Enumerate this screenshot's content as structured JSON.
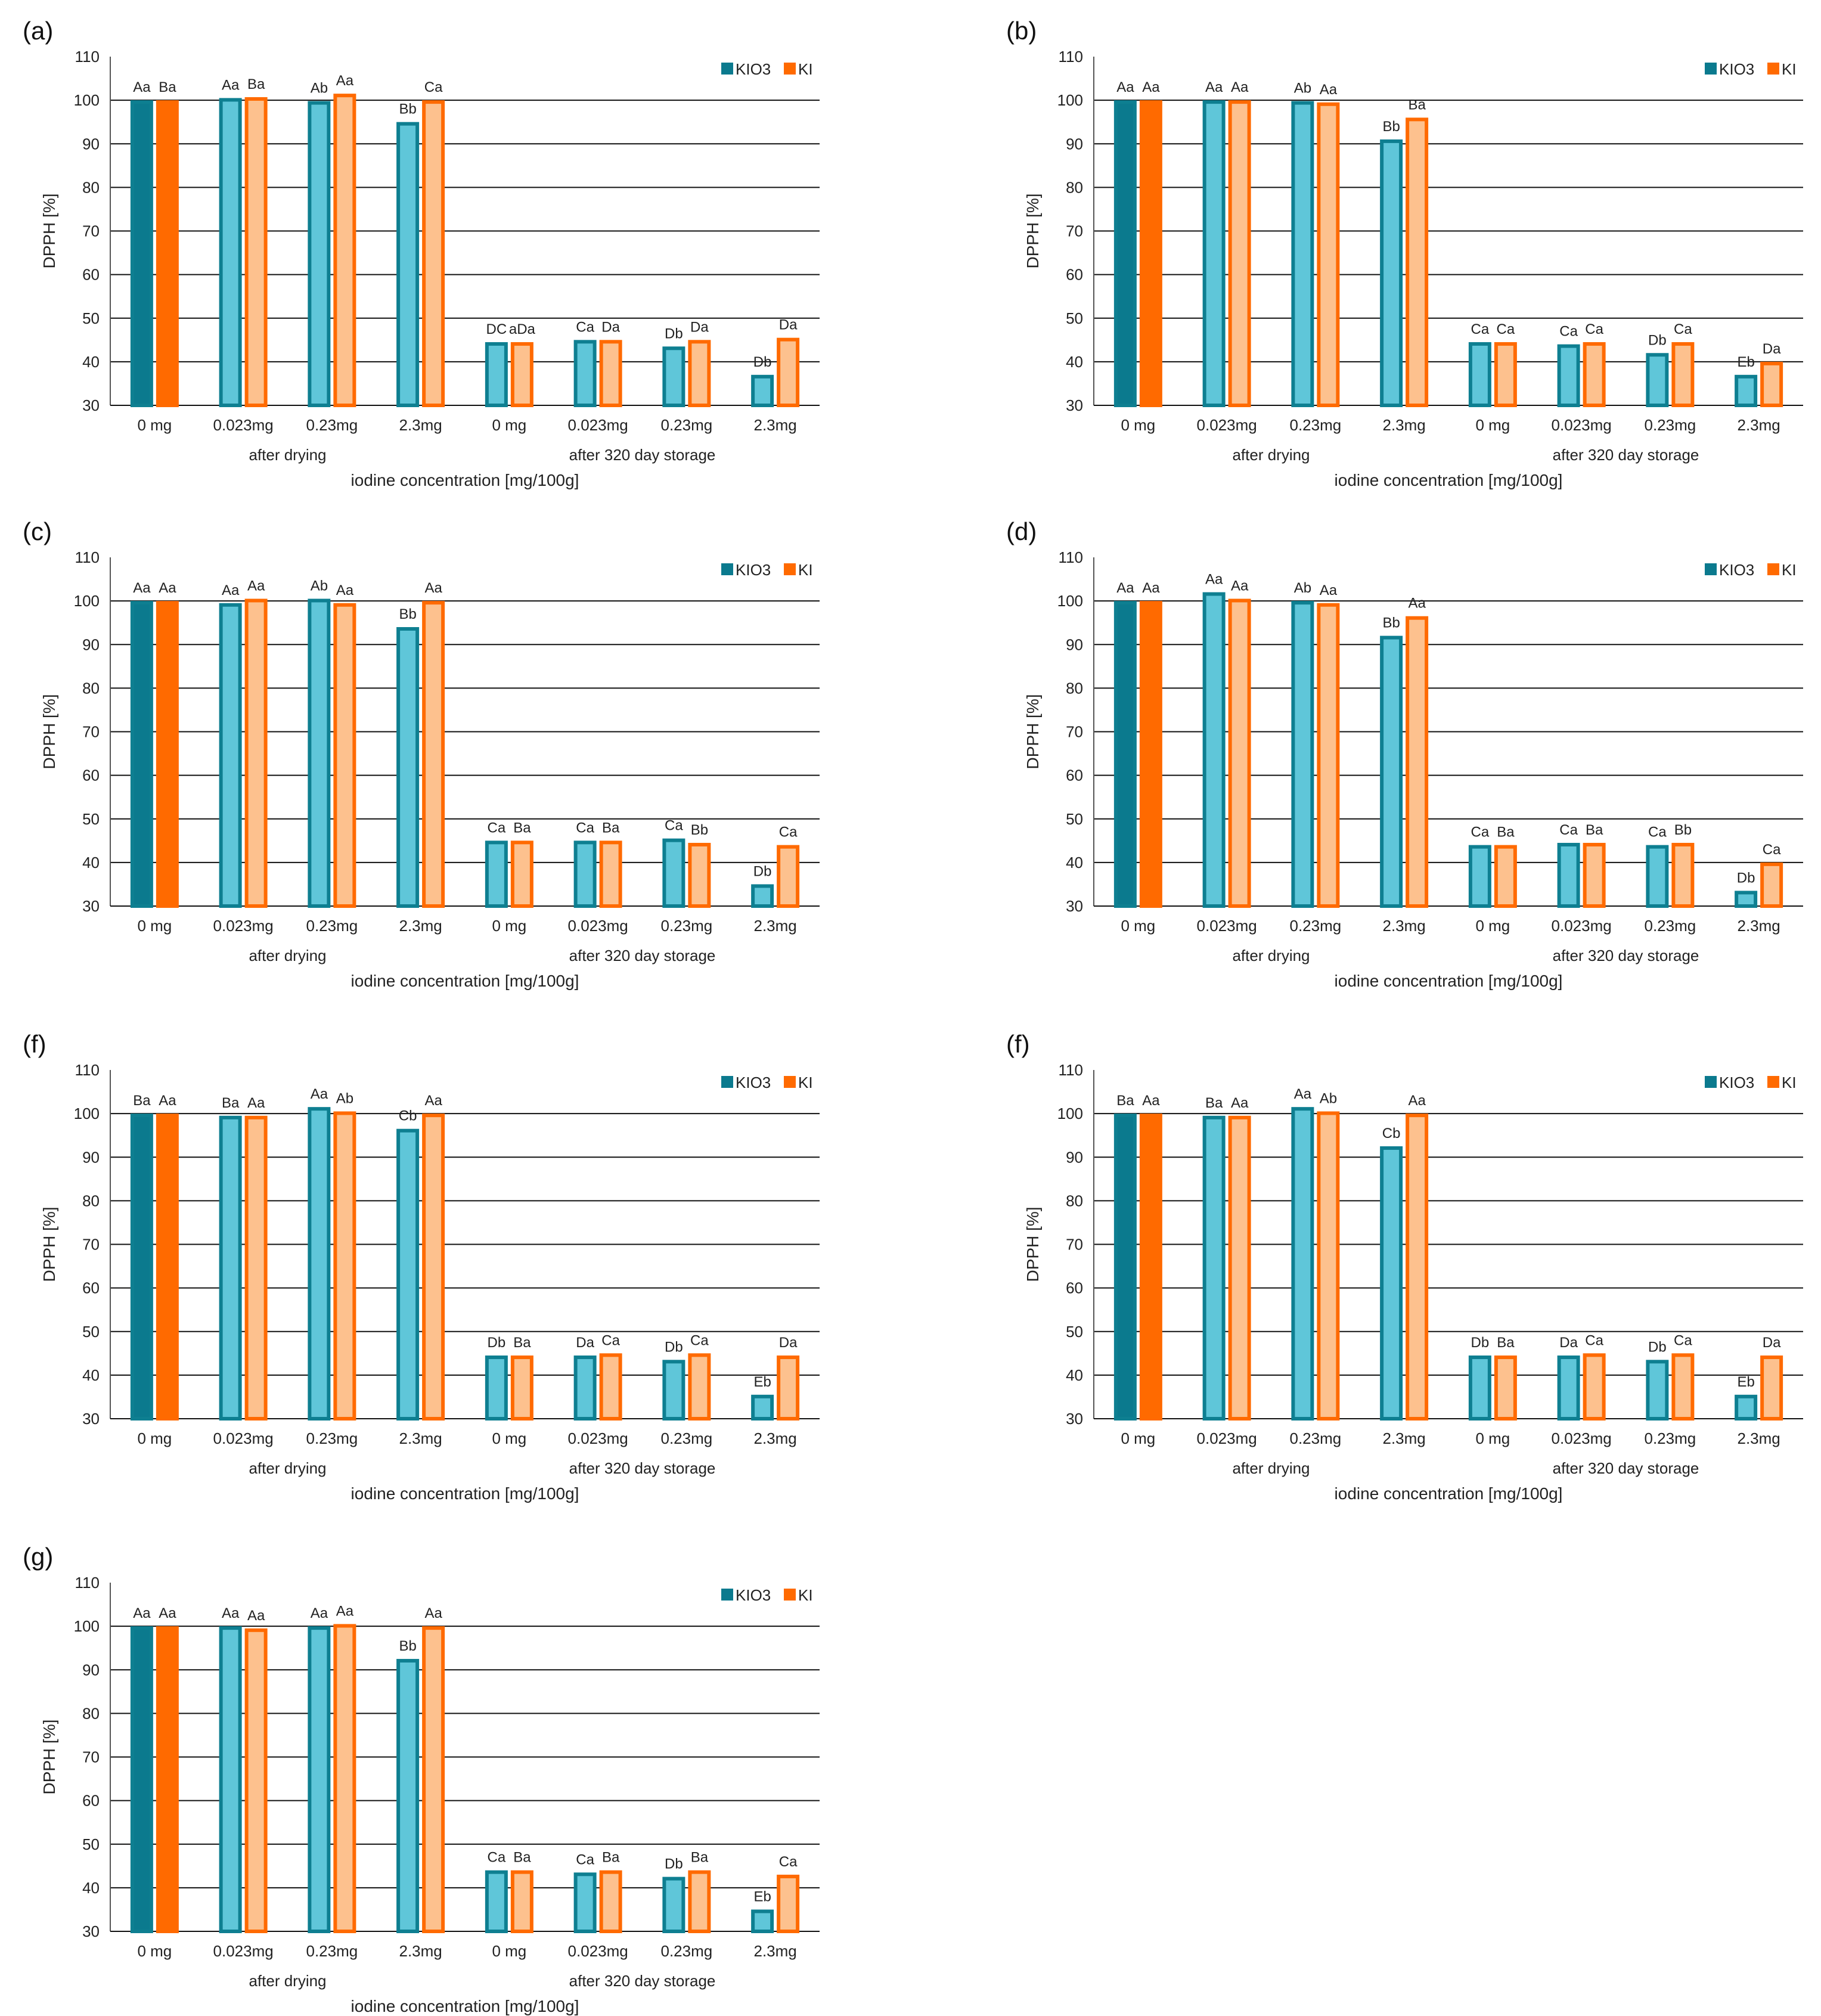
{
  "colors": {
    "kio3_ref": "#0B7A8E",
    "kio3_fill": "#5FC6D9",
    "kio3_stroke": "#0E7F91",
    "ki_ref": "#FF6A00",
    "ki_fill": "#FDC18E",
    "ki_stroke": "#FF6A00",
    "grid": "#111111"
  },
  "chart_data": [
    {
      "type": "bar",
      "panel_label": "(a)",
      "ylabel": "DPPH  [%]",
      "xlabel": "iodine concentration  [mg/100g]",
      "ylim": [
        30,
        110
      ],
      "yticks": [
        30,
        40,
        50,
        60,
        70,
        80,
        90,
        100,
        110
      ],
      "grid": true,
      "categories": [
        "0 mg",
        "0.023mg",
        "0.23mg",
        "2.3mg",
        "0 mg",
        "0.023mg",
        "0.23mg",
        "2.3mg"
      ],
      "groups": [
        {
          "name": "after drying",
          "from": 0,
          "to": 3
        },
        {
          "name": "after 320 day storage",
          "from": 4,
          "to": 7
        }
      ],
      "legend": [
        "KIO3",
        "KI"
      ],
      "series": [
        {
          "name": "KIO3",
          "values": [
            100,
            100.5,
            99.8,
            95,
            44.5,
            45,
            43.5,
            37
          ],
          "labels": [
            "Aa",
            "Aa",
            "Ab",
            "Bb",
            "DC",
            "Ca",
            "Db",
            "Db"
          ]
        },
        {
          "name": "KI",
          "values": [
            100,
            100.7,
            101.5,
            100,
            44.5,
            45,
            45,
            45.5
          ],
          "labels": [
            "Ba",
            "Ba",
            "Aa",
            "Ca",
            "aDa",
            "Da",
            "Da",
            "Da"
          ]
        }
      ]
    },
    {
      "type": "bar",
      "panel_label": "(b)",
      "ylabel": "DPPH  [%]",
      "xlabel": "iodine concentration  [mg/100g]",
      "ylim": [
        30,
        110
      ],
      "yticks": [
        30,
        40,
        50,
        60,
        70,
        80,
        90,
        100,
        110
      ],
      "grid": true,
      "categories": [
        "0 mg",
        "0.023mg",
        "0.23mg",
        "2.3mg",
        "0 mg",
        "0.023mg",
        "0.23mg",
        "2.3mg"
      ],
      "groups": [
        {
          "name": "after drying",
          "from": 0,
          "to": 3
        },
        {
          "name": "after 320 day storage",
          "from": 4,
          "to": 7
        }
      ],
      "legend": [
        "KIO3",
        "KI"
      ],
      "series": [
        {
          "name": "KIO3",
          "values": [
            100,
            100,
            99.8,
            91,
            44.5,
            44,
            42,
            37
          ],
          "labels": [
            "Aa",
            "Aa",
            "Ab",
            "Bb",
            "Ca",
            "Ca",
            "Db",
            "Eb"
          ]
        },
        {
          "name": "KI",
          "values": [
            100,
            100,
            99.5,
            96,
            44.5,
            44.5,
            44.5,
            40
          ],
          "labels": [
            "Aa",
            "Aa",
            "Aa",
            "Ba",
            "Ca",
            "Ca",
            "Ca",
            "Da"
          ]
        }
      ]
    },
    {
      "type": "bar",
      "panel_label": "(c)",
      "ylabel": "DPPH  [%]",
      "xlabel": "iodine concentration  [mg/100g]",
      "ylim": [
        30,
        110
      ],
      "yticks": [
        30,
        40,
        50,
        60,
        70,
        80,
        90,
        100,
        110
      ],
      "grid": true,
      "categories": [
        "0 mg",
        "0.023mg",
        "0.23mg",
        "2.3mg",
        "0 mg",
        "0.023mg",
        "0.23mg",
        "2.3mg"
      ],
      "groups": [
        {
          "name": "after drying",
          "from": 0,
          "to": 3
        },
        {
          "name": "after 320 day storage",
          "from": 4,
          "to": 7
        }
      ],
      "legend": [
        "KIO3",
        "KI"
      ],
      "series": [
        {
          "name": "KIO3",
          "values": [
            100,
            99.5,
            100.5,
            94,
            45,
            45,
            45.5,
            35
          ],
          "labels": [
            "Aa",
            "Aa",
            "Ab",
            "Bb",
            "Ca",
            "Ca",
            "Ca",
            "Db"
          ]
        },
        {
          "name": "KI",
          "values": [
            100,
            100.5,
            99.5,
            100,
            45,
            45,
            44.5,
            44
          ],
          "labels": [
            "Aa",
            "Aa",
            "Aa",
            "Aa",
            "Ba",
            "Ba",
            "Bb",
            "Ca"
          ]
        }
      ]
    },
    {
      "type": "bar",
      "panel_label": "(d)",
      "ylabel": "DPPH  [%]",
      "xlabel": "iodine concentration  [mg/100g]",
      "ylim": [
        30,
        110
      ],
      "yticks": [
        30,
        40,
        50,
        60,
        70,
        80,
        90,
        100,
        110
      ],
      "grid": true,
      "categories": [
        "0 mg",
        "0.023mg",
        "0.23mg",
        "2.3mg",
        "0 mg",
        "0.023mg",
        "0.23mg",
        "2.3mg"
      ],
      "groups": [
        {
          "name": "after drying",
          "from": 0,
          "to": 3
        },
        {
          "name": "after 320 day storage",
          "from": 4,
          "to": 7
        }
      ],
      "legend": [
        "KIO3",
        "KI"
      ],
      "series": [
        {
          "name": "KIO3",
          "values": [
            100,
            102,
            100,
            92,
            44,
            44.5,
            44,
            33.5
          ],
          "labels": [
            "Aa",
            "Aa",
            "Ab",
            "Bb",
            "Ca",
            "Ca",
            "Ca",
            "Db"
          ]
        },
        {
          "name": "KI",
          "values": [
            100,
            100.5,
            99.5,
            96.5,
            44,
            44.5,
            44.5,
            40
          ],
          "labels": [
            "Aa",
            "Aa",
            "Aa",
            "Aa",
            "Ba",
            "Ba",
            "Bb",
            "Ca"
          ]
        }
      ]
    },
    {
      "type": "bar",
      "panel_label": "(f)",
      "ylabel": "DPPH  [%]",
      "xlabel": "iodine concentration  [mg/100g]",
      "ylim": [
        30,
        110
      ],
      "yticks": [
        30,
        40,
        50,
        60,
        70,
        80,
        90,
        100,
        110
      ],
      "grid": true,
      "categories": [
        "0 mg",
        "0.023mg",
        "0.23mg",
        "2.3mg",
        "0 mg",
        "0.023mg",
        "0.23mg",
        "2.3mg"
      ],
      "groups": [
        {
          "name": "after drying",
          "from": 0,
          "to": 3
        },
        {
          "name": "after 320 day storage",
          "from": 4,
          "to": 7
        }
      ],
      "legend": [
        "KIO3",
        "KI"
      ],
      "series": [
        {
          "name": "KIO3",
          "values": [
            100,
            99.5,
            101.5,
            96.5,
            44.5,
            44.5,
            43.5,
            35.5
          ],
          "labels": [
            "Ba",
            "Ba",
            "Aa",
            "Cb",
            "Db",
            "Da",
            "Db",
            "Eb"
          ]
        },
        {
          "name": "KI",
          "values": [
            100,
            99.5,
            100.5,
            100,
            44.5,
            45,
            45,
            44.5
          ],
          "labels": [
            "Aa",
            "Aa",
            "Ab",
            "Aa",
            "Ba",
            "Ca",
            "Ca",
            "Da"
          ]
        }
      ]
    },
    {
      "type": "bar",
      "panel_label": "(f)",
      "ylabel": "DPPH  [%]",
      "xlabel": "iodine concentration  [mg/100g]",
      "ylim": [
        30,
        110
      ],
      "yticks": [
        30,
        40,
        50,
        60,
        70,
        80,
        90,
        100,
        110
      ],
      "grid": true,
      "categories": [
        "0 mg",
        "0.023mg",
        "0.23mg",
        "2.3mg",
        "0 mg",
        "0.023mg",
        "0.23mg",
        "2.3mg"
      ],
      "groups": [
        {
          "name": "after drying",
          "from": 0,
          "to": 3
        },
        {
          "name": "after 320 day storage",
          "from": 4,
          "to": 7
        }
      ],
      "legend": [
        "KIO3",
        "KI"
      ],
      "series": [
        {
          "name": "KIO3",
          "values": [
            100,
            99.5,
            101.5,
            92.5,
            44.5,
            44.5,
            43.5,
            35.5
          ],
          "labels": [
            "Ba",
            "Ba",
            "Aa",
            "Cb",
            "Db",
            "Da",
            "Db",
            "Eb"
          ]
        },
        {
          "name": "KI",
          "values": [
            100,
            99.5,
            100.5,
            100,
            44.5,
            45,
            45,
            44.5
          ],
          "labels": [
            "Aa",
            "Aa",
            "Ab",
            "Aa",
            "Ba",
            "Ca",
            "Ca",
            "Da"
          ]
        }
      ]
    },
    {
      "type": "bar",
      "panel_label": "(g)",
      "ylabel": "DPPH  [%]",
      "xlabel": "iodine concentration  [mg/100g]",
      "ylim": [
        30,
        110
      ],
      "yticks": [
        30,
        40,
        50,
        60,
        70,
        80,
        90,
        100,
        110
      ],
      "grid": true,
      "categories": [
        "0 mg",
        "0.023mg",
        "0.23mg",
        "2.3mg",
        "0 mg",
        "0.023mg",
        "0.23mg",
        "2.3mg"
      ],
      "groups": [
        {
          "name": "after drying",
          "from": 0,
          "to": 3
        },
        {
          "name": "after 320 day storage",
          "from": 4,
          "to": 7
        }
      ],
      "legend": [
        "KIO3",
        "KI"
      ],
      "series": [
        {
          "name": "KIO3",
          "values": [
            100,
            100,
            100,
            92.5,
            44,
            43.5,
            42.5,
            35
          ],
          "labels": [
            "Aa",
            "Aa",
            "Aa",
            "Bb",
            "Ca",
            "Ca",
            "Db",
            "Eb"
          ]
        },
        {
          "name": "KI",
          "values": [
            100,
            99.5,
            100.5,
            100,
            44,
            44,
            44,
            43
          ],
          "labels": [
            "Aa",
            "Aa",
            "Aa",
            "Aa",
            "Ba",
            "Ba",
            "Ba",
            "Ca"
          ]
        }
      ]
    }
  ]
}
